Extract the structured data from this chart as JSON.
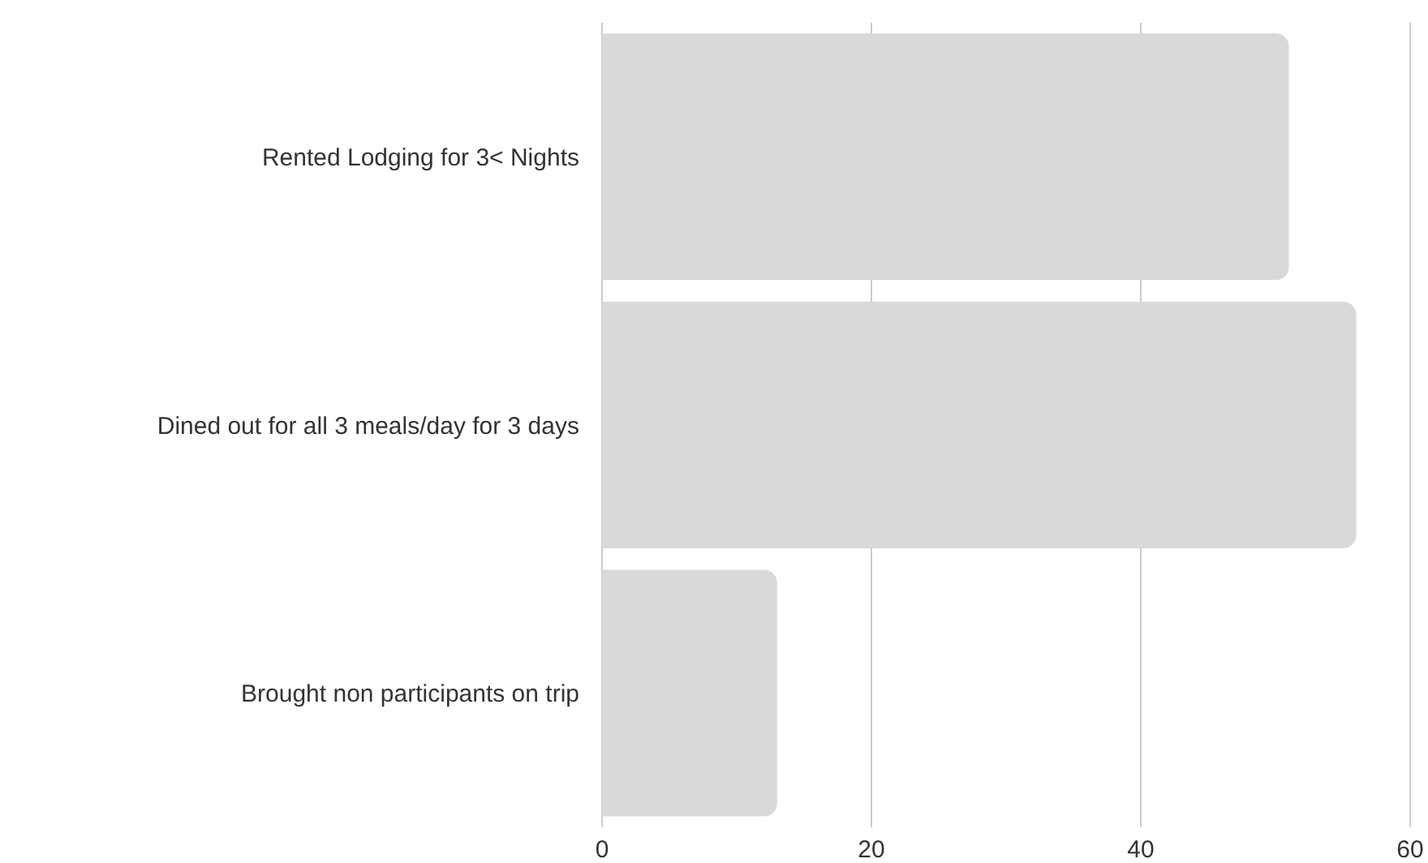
{
  "chart_data": {
    "type": "bar",
    "orientation": "horizontal",
    "categories": [
      "Rented Lodging for 3< Nights",
      "Dined out for all 3 meals/day for 3 days",
      "Brought non participants on trip"
    ],
    "values": [
      51,
      56,
      13
    ],
    "color": "#d9d9d9",
    "xlim": [
      0,
      60
    ],
    "xticks": [
      0,
      20,
      40,
      60
    ],
    "grid": "x"
  }
}
